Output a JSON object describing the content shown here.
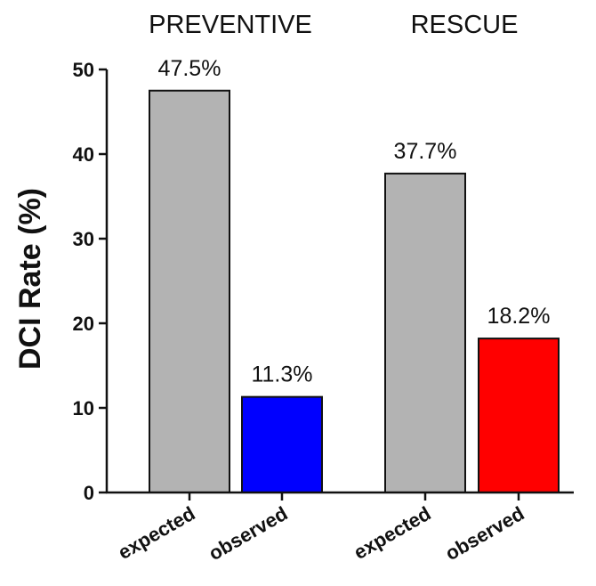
{
  "chart_data": {
    "type": "bar",
    "ylabel": "DCI Rate (%)",
    "ylim": [
      0,
      50
    ],
    "yticks": [
      0,
      10,
      20,
      30,
      40,
      50
    ],
    "groups": [
      {
        "title": "PREVENTIVE",
        "bars": [
          {
            "category": "expected",
            "value": 47.5,
            "label": "47.5%",
            "color": "#b3b3b3"
          },
          {
            "category": "observed",
            "value": 11.3,
            "label": "11.3%",
            "color": "#0000ff"
          }
        ]
      },
      {
        "title": "RESCUE",
        "bars": [
          {
            "category": "expected",
            "value": 37.7,
            "label": "37.7%",
            "color": "#b3b3b3"
          },
          {
            "category": "observed",
            "value": 18.2,
            "label": "18.2%",
            "color": "#ff0000"
          }
        ]
      }
    ]
  }
}
